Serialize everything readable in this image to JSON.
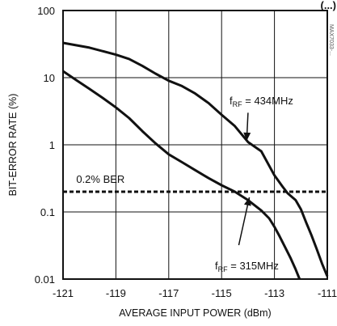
{
  "chart_data": {
    "type": "line",
    "xlabel": "AVERAGE INPUT POWER (dBm)",
    "ylabel": "BIT-ERROR RATE (%)",
    "xlim": [
      -121,
      -111
    ],
    "ylim": [
      0.01,
      100
    ],
    "yscale": "log",
    "grid": true,
    "x_ticks": [
      "-121",
      "-119",
      "-117",
      "-115",
      "-113",
      "-111"
    ],
    "y_ticks": [
      "0.01",
      "0.1",
      "1",
      "10",
      "100"
    ],
    "series": [
      {
        "name": "fRF = 434MHz",
        "x": [
          -121.0,
          -120.0,
          -119.0,
          -118.5,
          -118.0,
          -117.5,
          -117.0,
          -116.5,
          -116.0,
          -115.5,
          -115.0,
          -114.5,
          -114.0,
          -113.5,
          -113.0,
          -112.7,
          -112.5,
          -112.2,
          -112.0,
          -111.8,
          -111.6,
          -111.4,
          -111.2,
          -111.0
        ],
        "y": [
          33,
          28,
          22,
          19,
          15,
          11.5,
          9,
          7.5,
          5.8,
          4.2,
          2.8,
          1.9,
          1.1,
          0.8,
          0.35,
          0.24,
          0.19,
          0.15,
          0.11,
          0.07,
          0.045,
          0.028,
          0.017,
          0.011
        ]
      },
      {
        "name": "fRF = 315MHz",
        "x": [
          -121.0,
          -120.5,
          -120.0,
          -119.5,
          -119.0,
          -118.5,
          -118.0,
          -117.5,
          -117.0,
          -116.5,
          -116.0,
          -115.5,
          -115.0,
          -114.5,
          -114.0,
          -113.5,
          -113.2,
          -113.0,
          -112.8,
          -112.6,
          -112.4,
          -112.2,
          -112.05
        ],
        "y": [
          12.5,
          9.2,
          6.8,
          5.0,
          3.6,
          2.5,
          1.6,
          1.05,
          0.72,
          0.55,
          0.42,
          0.32,
          0.25,
          0.2,
          0.15,
          0.105,
          0.08,
          0.06,
          0.043,
          0.03,
          0.021,
          0.014,
          0.01
        ]
      }
    ],
    "reference_line": {
      "label": "0.2% BER",
      "y": 0.2,
      "style": "dashed"
    },
    "annotations": [
      {
        "label_main": "f",
        "label_sub": "RF",
        "label_rest": " = 434MHz",
        "series": 0,
        "arrow_to": [
          -114.05,
          1.15
        ]
      },
      {
        "label_main": "f",
        "label_sub": "RF",
        "label_rest": " = 315MHz",
        "series": 1,
        "arrow_to": [
          -113.95,
          0.165
        ]
      }
    ],
    "top_right_label": "(...)",
    "side_code": "MAX7033-..."
  }
}
